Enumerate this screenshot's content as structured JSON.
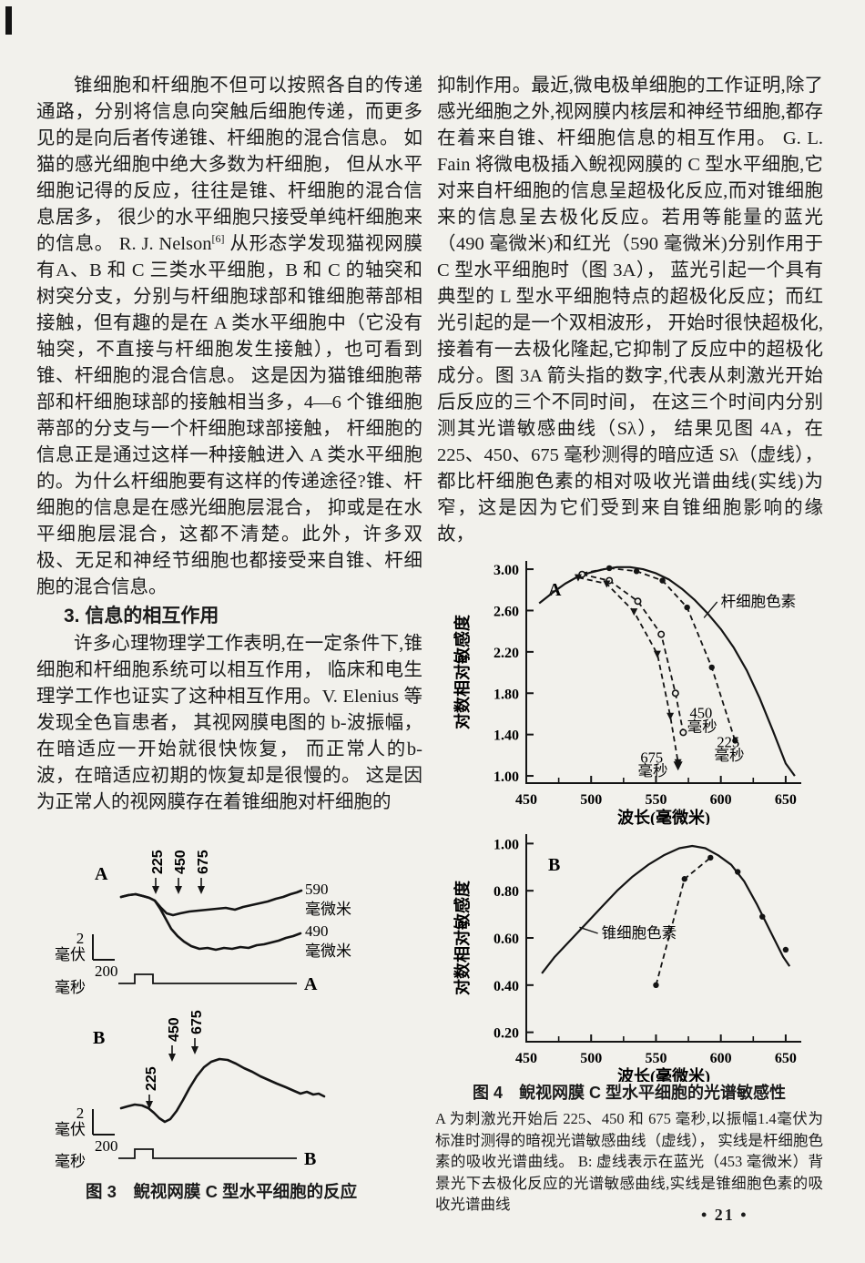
{
  "page_number": "• 21 •",
  "left": {
    "p1": {
      "pre": "锥细胞和杆细胞不但可以按照各自的传递通路，分别将信息向突触后细胞传递，而更多见的是向后者传递锥、杆细胞的混合信息。 如猫的感光细胞中绝大多数为杆细胞， 但从水平细胞记得的反应，往往是锥、杆细胞的混合信息居多， 很少的水平细胞只接受单纯杆细胞来的信息。 R. J. Nelson",
      "sup": "[6]",
      "post": " 从形态学发现猫视网膜有A、B 和 C 三类水平细胞，B 和 C 的轴突和树突分支，分别与杆细胞球部和锥细胞蒂部相接触，但有趣的是在 A 类水平细胞中（它没有轴突，不直接与杆细胞发生接触），也可看到锥、杆细胞的混合信息。 这是因为猫锥细胞蒂部和杆细胞球部的接触相当多，4—6 个锥细胞蒂部的分支与一个杆细胞球部接触， 杆细胞的信息正是通过这样一种接触进入 A 类水平细胞的。为什么杆细胞要有这样的传递途径?锥、杆细胞的信息是在感光细胞层混合， 抑或是在水平细胞层混合，这都不清楚。此外，许多双极、无足和神经节细胞也都接受来自锥、杆细胞的混合信息。"
    },
    "heading": "3. 信息的相互作用",
    "p2": "许多心理物理学工作表明,在一定条件下,锥细胞和杆细胞系统可以相互作用， 临床和电生理学工作也证实了这种相互作用。V. Elenius 等发现全色盲患者， 其视网膜电图的 b-波振幅， 在暗适应一开始就很快恢复， 而正常人的b-波，在暗适应初期的恢复却是很慢的。 这是因为正常人的视网膜存在着锥细胞对杆细胞的"
  },
  "right": {
    "p1": "抑制作用。最近,微电极单细胞的工作证明,除了感光细胞之外,视网膜内核层和神经节细胞,都存在着来自锥、杆细胞信息的相互作用。 G. L. Fain 将微电极插入鲵视网膜的 C 型水平细胞,它对来自杆细胞的信息呈超极化反应,而对锥细胞来的信息呈去极化反应。若用等能量的蓝光（490 毫微米)和红光（590 毫微米)分别作用于 C 型水平细胞时（图 3A）， 蓝光引起一个具有典型的 L 型水平细胞特点的超极化反应；而红光引起的是一个双相波形， 开始时很快超极化,接着有一去极化隆起,它抑制了反应中的超极化成分。图 3A 箭头指的数字,代表从刺激光开始后反应的三个不同时间， 在这三个时间内分别测其光谱敏感曲线（Sλ）， 结果见图 4A，在 225、450、675 毫秒测得的暗应适 Sλ（虚线），都比杆细胞色素的相对吸收光谱曲线(实线)为窄，这是因为它们受到来自锥细胞影响的缘故，"
  },
  "fig3": {
    "panel_a_label": "A",
    "panel_b_label": "B",
    "mark_225": "225",
    "mark_450": "450",
    "mark_675": "675",
    "label_590": "590",
    "label_490": "490",
    "unit_nm": "毫微米",
    "scale_mv_value": "2",
    "scale_mv_unit": "毫伏",
    "scale_ms_value": "200",
    "scale_ms_unit": "毫秒",
    "stim_a_end": "A",
    "stim_b_end": "B",
    "caption": "图 3　鲵视网膜 C 型水平细胞的反应"
  },
  "fig4": {
    "caption_title": "图 4　鲵视网膜 C 型水平细胞的光谱敏感性",
    "caption_body": "A 为刺激光开始后 225、450 和 675 毫秒,以振幅1.4毫伏为标准时测得的暗视光谱敏感曲线（虚线）， 实线是杆细胞色素的吸收光谱曲线。 B:  虚线表示在蓝光（453 毫微米）背景光下去极化反应的光谱敏感曲线,实线是锥细胞色素的吸收光谱曲线"
  },
  "chart_data": [
    {
      "id": "chartA",
      "type": "line",
      "panel_label": "A",
      "panel_label_pos": [
        124,
        48
      ],
      "xlabel": "波长(毫微米)",
      "ylabel": "对数相对敏感度",
      "xlim": [
        450,
        662
      ],
      "ylim": [
        0.93,
        3.08
      ],
      "x_ticks": [
        450,
        500,
        550,
        600,
        650
      ],
      "x_minor_ticks": [
        475,
        525,
        575,
        625
      ],
      "y_ticks": [
        1.0,
        1.4,
        1.8,
        2.2,
        2.6,
        3.0
      ],
      "series": [
        {
          "name": "杆细胞色素(实线)",
          "style": "solid",
          "marker": "none",
          "x": [
            460,
            470,
            480,
            490,
            500,
            510,
            520,
            530,
            540,
            550,
            560,
            570,
            580,
            590,
            600,
            610,
            620,
            630,
            640,
            650,
            657
          ],
          "y": [
            2.67,
            2.77,
            2.86,
            2.93,
            2.97,
            3.0,
            3.02,
            3.02,
            3.0,
            2.96,
            2.9,
            2.81,
            2.7,
            2.57,
            2.42,
            2.24,
            2.02,
            1.75,
            1.44,
            1.12,
            1.0
          ]
        },
        {
          "name": "225毫秒暗应适Sλ(虚线)",
          "style": "dashed",
          "marker": "dot",
          "marker_skip_first": true,
          "x": [
            493,
            514,
            535,
            555,
            574,
            593,
            611
          ],
          "y": [
            2.96,
            3.01,
            2.98,
            2.89,
            2.63,
            2.05,
            1.34
          ]
        },
        {
          "name": "450毫秒暗应适Sλ(虚线)",
          "style": "dashed",
          "marker": "circle",
          "x": [
            493,
            514,
            536,
            554,
            565,
            571
          ],
          "y": [
            2.95,
            2.89,
            2.69,
            2.37,
            1.8,
            1.42
          ]
        },
        {
          "name": "675毫秒暗应适Sλ(虚线)",
          "style": "dashed",
          "marker": "triangle",
          "end_arrow": true,
          "x": [
            490,
            512,
            533,
            551,
            561,
            567
          ],
          "y": [
            2.92,
            2.86,
            2.59,
            2.18,
            1.58,
            1.13
          ]
        }
      ],
      "annotations": [
        {
          "text": "杆细胞色素",
          "x": 600,
          "y": 2.64,
          "anchor": "start",
          "leader": [
            587,
            2.53
          ]
        },
        {
          "text": "450",
          "x": 576,
          "y": 1.56,
          "anchor": "start"
        },
        {
          "text": "毫秒",
          "x": 574,
          "y": 1.43,
          "anchor": "start"
        },
        {
          "text": "225",
          "x": 597,
          "y": 1.28,
          "anchor": "start"
        },
        {
          "text": "毫秒",
          "x": 595,
          "y": 1.15,
          "anchor": "start"
        },
        {
          "text": "675",
          "x": 538,
          "y": 1.13,
          "anchor": "start"
        },
        {
          "text": "毫秒",
          "x": 536,
          "y": 1.0,
          "anchor": "start"
        }
      ]
    },
    {
      "id": "chartB",
      "type": "line",
      "panel_label": "B",
      "panel_label_pos": [
        124,
        50
      ],
      "xlabel": "波长(毫微米)",
      "ylabel": "对数相对敏感度",
      "xlim": [
        450,
        662
      ],
      "ylim": [
        0.16,
        1.04
      ],
      "x_ticks": [
        450,
        500,
        550,
        600,
        650
      ],
      "x_minor_ticks": [
        475,
        525,
        575,
        625
      ],
      "y_ticks": [
        0.2,
        0.4,
        0.6,
        0.8,
        1.0
      ],
      "series": [
        {
          "name": "锥细胞色素(实线)",
          "style": "solid",
          "marker": "none",
          "x": [
            462,
            472,
            484,
            496,
            508,
            520,
            532,
            544,
            556,
            568,
            578,
            588,
            598,
            608,
            618,
            628,
            638,
            648,
            653
          ],
          "y": [
            0.45,
            0.52,
            0.59,
            0.66,
            0.73,
            0.8,
            0.86,
            0.91,
            0.95,
            0.98,
            0.99,
            0.98,
            0.95,
            0.91,
            0.84,
            0.74,
            0.63,
            0.52,
            0.48
          ]
        },
        {
          "name": "去极化反应光谱敏感曲线(虚线)",
          "style": "dashed",
          "marker": "dot",
          "x": [
            550,
            572,
            592
          ],
          "y": [
            0.4,
            0.85,
            0.94
          ]
        },
        {
          "name": "数据点",
          "style": "none",
          "marker": "dot",
          "x": [
            613,
            632,
            650
          ],
          "y": [
            0.88,
            0.69,
            0.55
          ]
        }
      ],
      "annotations": [
        {
          "text": "锥细胞色素",
          "x": 508,
          "y": 0.6,
          "anchor": "start",
          "leader": [
            491,
            0.645
          ]
        }
      ]
    }
  ]
}
